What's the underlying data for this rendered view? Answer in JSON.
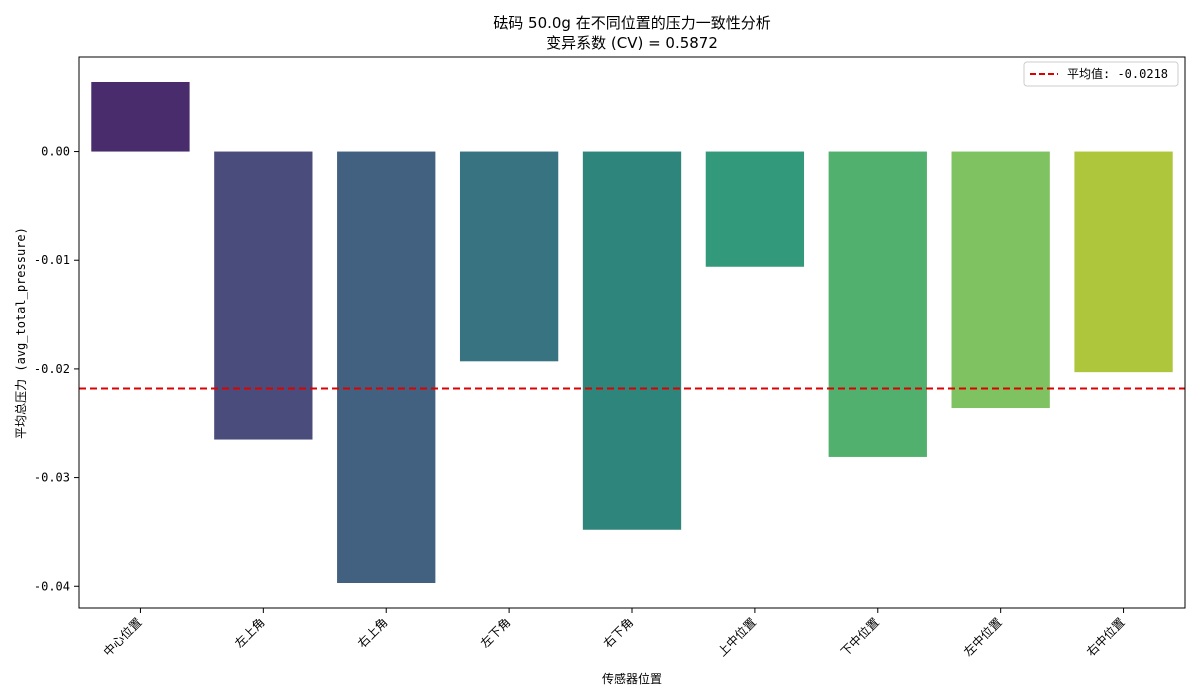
{
  "chart_data": {
    "type": "bar",
    "title": "砝码 50.0g 在不同位置的压力一致性分析",
    "subtitle": "变异系数 (CV) = 0.5872",
    "xlabel": "传感器位置",
    "ylabel": "平均总压力 (avg_total_pressure)",
    "categories": [
      "中心位置",
      "左上角",
      "右上角",
      "左下角",
      "右下角",
      "上中位置",
      "下中位置",
      "左中位置",
      "右中位置"
    ],
    "values": [
      0.0064,
      -0.0265,
      -0.0397,
      -0.0193,
      -0.0348,
      -0.0106,
      -0.0281,
      -0.0236,
      -0.0203
    ],
    "colors": [
      "#482c6b",
      "#4a4d7c",
      "#426080",
      "#377380",
      "#2e857c",
      "#32997b",
      "#52b06e",
      "#7fc261",
      "#aec63b"
    ],
    "yticks": [
      0.0,
      -0.01,
      -0.02,
      -0.03,
      -0.04
    ],
    "ytick_labels": [
      "0.00",
      "-0.01",
      "-0.02",
      "-0.03",
      "-0.04"
    ],
    "ylim": [
      -0.042,
      0.0087
    ],
    "mean_line": {
      "value": -0.0218,
      "label": "平均值: -0.0218",
      "color": "#dd0000",
      "style": "dashed"
    },
    "legend_position": "top-right",
    "grid": false
  }
}
